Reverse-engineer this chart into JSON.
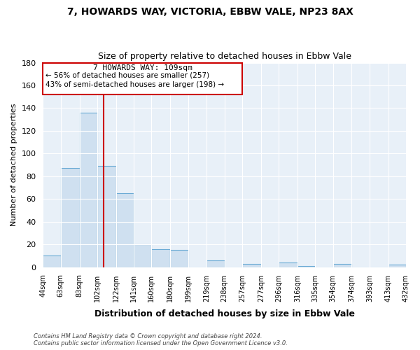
{
  "title": "7, HOWARDS WAY, VICTORIA, EBBW VALE, NP23 8AX",
  "subtitle": "Size of property relative to detached houses in Ebbw Vale",
  "xlabel": "Distribution of detached houses by size in Ebbw Vale",
  "ylabel": "Number of detached properties",
  "bar_color": "#cfe0f0",
  "bar_edge_color": "#6aaad4",
  "background_color": "#e8f0f8",
  "grid_color": "#ffffff",
  "bin_edges": [
    44,
    63,
    83,
    102,
    122,
    141,
    160,
    180,
    199,
    219,
    238,
    257,
    277,
    296,
    316,
    335,
    354,
    374,
    393,
    413,
    432
  ],
  "bin_labels": [
    "44sqm",
    "63sqm",
    "83sqm",
    "102sqm",
    "122sqm",
    "141sqm",
    "160sqm",
    "180sqm",
    "199sqm",
    "219sqm",
    "238sqm",
    "257sqm",
    "277sqm",
    "296sqm",
    "316sqm",
    "335sqm",
    "354sqm",
    "374sqm",
    "393sqm",
    "413sqm",
    "432sqm"
  ],
  "bar_heights": [
    10,
    87,
    136,
    89,
    65,
    20,
    16,
    15,
    0,
    6,
    0,
    3,
    0,
    4,
    1,
    0,
    3,
    0,
    0,
    2
  ],
  "ylim": [
    0,
    180
  ],
  "yticks": [
    0,
    20,
    40,
    60,
    80,
    100,
    120,
    140,
    160,
    180
  ],
  "red_line_x": 109,
  "annotation_line1": "7 HOWARDS WAY: 109sqm",
  "annotation_line2": "← 56% of detached houses are smaller (257)",
  "annotation_line3": "43% of semi-detached houses are larger (198) →",
  "footer_line1": "Contains HM Land Registry data © Crown copyright and database right 2024.",
  "footer_line2": "Contains public sector information licensed under the Open Government Licence v3.0.",
  "annotation_box_edge": "#cc0000",
  "red_line_color": "#cc0000",
  "fig_width": 6.0,
  "fig_height": 5.0
}
